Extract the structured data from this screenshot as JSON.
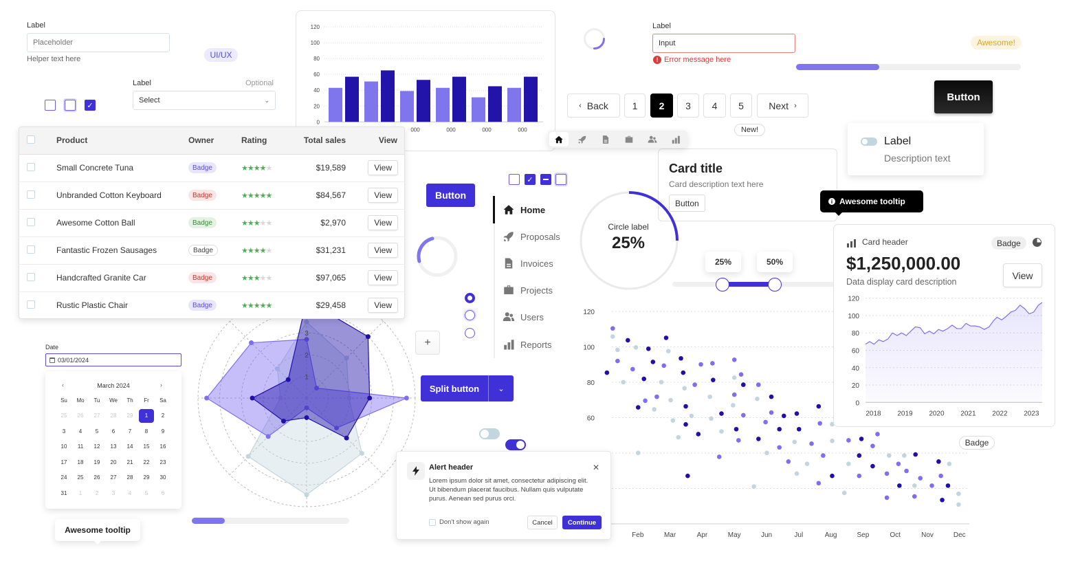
{
  "text_input": {
    "label": "Label",
    "placeholder": "Placeholder",
    "helper": "Helper text here"
  },
  "tag_badge": "UI/UX",
  "select_field": {
    "label": "Label",
    "optional": "Optional",
    "value": "Select"
  },
  "checkboxes_left": [
    {
      "checked": false
    },
    {
      "checked": false,
      "focused": true
    },
    {
      "checked": true
    }
  ],
  "error_input": {
    "label": "Label",
    "value": "Input",
    "error": "Error message here"
  },
  "awesome_badge": "Awesome!",
  "top_progress_percent": 37,
  "pagination": {
    "back": "Back",
    "pages": [
      "1",
      "2",
      "3",
      "4",
      "5"
    ],
    "active": "2",
    "next": "Next"
  },
  "new_badge": "New!",
  "dark_button": "Button",
  "toggle_card": {
    "label": "Label",
    "description": "Description text",
    "on": false
  },
  "icon_toolbar": [
    "home",
    "rocket",
    "document",
    "briefcase",
    "users",
    "bar-chart"
  ],
  "content_card": {
    "title": "Card title",
    "description": "Card description text here",
    "button": "Button"
  },
  "dark_tooltip": "Awesome tooltip",
  "circle_progress": {
    "label": "Circle label",
    "value": "25%",
    "percent": 25
  },
  "range_slider": {
    "low": "25%",
    "high": "50%",
    "low_value": 25,
    "high_value": 50
  },
  "primary_button": "Button",
  "ring_spinner_percent": 25,
  "checkbox_row": [
    "unchecked",
    "checked",
    "indeterminate",
    "unchecked"
  ],
  "radios": [
    {
      "selected": true
    },
    {
      "selected": false
    },
    {
      "selected": false
    }
  ],
  "add_button": "+",
  "side_nav": [
    {
      "label": "Home",
      "icon": "home",
      "active": true
    },
    {
      "label": "Proposals",
      "icon": "rocket"
    },
    {
      "label": "Invoices",
      "icon": "document"
    },
    {
      "label": "Projects",
      "icon": "briefcase"
    },
    {
      "label": "Users",
      "icon": "users"
    },
    {
      "label": "Reports",
      "icon": "bar-chart"
    }
  ],
  "split_button": "Split button",
  "toggles": [
    {
      "on": false
    },
    {
      "on": true
    }
  ],
  "alert": {
    "header": "Alert header",
    "body": "Lorem ipsum dolor sit amet, consectetur adipiscing elit. Ut bibendum placerat faucibus. Nullam quis vulputate purus. Aenean sed purus orci.",
    "checkbox": "Don't show again",
    "cancel": "Cancel",
    "continue": "Continue"
  },
  "bottom_progress_percent": 21,
  "white_tooltip": "Awesome tooltip",
  "date_picker": {
    "label": "Date",
    "value": "03/01/2024",
    "month": "March 2024",
    "weekdays": [
      "Su",
      "Mo",
      "Tu",
      "We",
      "Th",
      "Fr",
      "Sa"
    ],
    "weeks": [
      [
        "25",
        "26",
        "27",
        "28",
        "29",
        "1",
        "2"
      ],
      [
        "3",
        "4",
        "5",
        "6",
        "7",
        "8",
        "9"
      ],
      [
        "10",
        "11",
        "12",
        "13",
        "14",
        "15",
        "16"
      ],
      [
        "17",
        "18",
        "19",
        "20",
        "21",
        "22",
        "23"
      ],
      [
        "24",
        "25",
        "26",
        "27",
        "28",
        "29",
        "30"
      ],
      [
        "31",
        "1",
        "2",
        "3",
        "4",
        "5",
        "6"
      ]
    ],
    "selected": "1"
  },
  "table": {
    "columns": [
      "Product",
      "Owner",
      "Rating",
      "Total sales",
      "View"
    ],
    "rows": [
      {
        "product": "Small Concrete Tuna",
        "badge": "Badge",
        "badge_style": "purple",
        "rating": 4,
        "sales": "$19,589",
        "action": "View"
      },
      {
        "product": "Unbranded Cotton Keyboard",
        "badge": "Badge",
        "badge_style": "red",
        "rating": 5,
        "sales": "$84,567",
        "action": "View"
      },
      {
        "product": "Awesome Cotton Ball",
        "badge": "Badge",
        "badge_style": "green",
        "rating": 3,
        "sales": "$2,970",
        "action": "View"
      },
      {
        "product": "Fantastic Frozen Sausages",
        "badge": "Badge",
        "badge_style": "outline",
        "rating": 4,
        "sales": "$31,231",
        "action": "View"
      },
      {
        "product": "Handcrafted Granite Car",
        "badge": "Badge",
        "badge_style": "red",
        "rating": 3,
        "sales": "$97,065",
        "action": "View"
      },
      {
        "product": "Rustic Plastic Chair",
        "badge": "Badge",
        "badge_style": "purple",
        "rating": 5,
        "sales": "$29,458",
        "action": "View"
      }
    ]
  },
  "data_card": {
    "header": "Card header",
    "badge": "Badge",
    "value": "$1,250,000.00",
    "description": "Data display card description",
    "button": "View"
  },
  "floating_badge": "Badge",
  "colors": {
    "primary": "#4030d8",
    "light_purple": "#7f6ff0",
    "dark_navy": "#2010a8",
    "grey_blue": "#c3d6df",
    "error": "#d93a3a"
  },
  "chart_data": [
    {
      "type": "bar",
      "categories": [
        "000",
        "000",
        "000",
        "000",
        "000",
        "000"
      ],
      "series": [
        {
          "values": [
            43,
            51,
            39,
            43,
            31,
            43
          ],
          "color": "#7f76ee"
        },
        {
          "values": [
            57,
            65,
            53,
            57,
            45,
            57
          ],
          "color": "#2214a8"
        }
      ],
      "yticks": [
        0,
        20,
        40,
        60,
        80,
        100,
        120
      ],
      "ylim": [
        0,
        120
      ],
      "grid": true
    },
    {
      "type": "radar",
      "axes": 8,
      "ring_labels": [
        "1",
        "2",
        "3"
      ],
      "rmax": 5,
      "series": [
        {
          "color": "#c3d6df",
          "values": [
            3.5,
            2.6,
            1.95,
            3.6,
            4.45,
            3.8,
            1.2,
            1.9
          ]
        },
        {
          "color": "#7f6ff0",
          "values": [
            2.7,
            0.65,
            4.6,
            1.95,
            0.45,
            2.5,
            4.6,
            3.6
          ]
        },
        {
          "color": "#2010a8",
          "values": [
            4.5,
            4.0,
            2.9,
            2.6,
            0.9,
            1.5,
            2.5,
            1.2
          ]
        }
      ]
    },
    {
      "type": "scatter",
      "xticks": [
        "Feb",
        "Mar",
        "Apr",
        "May",
        "Jun",
        "Jul",
        "Aug",
        "Sep",
        "Oct",
        "Nov",
        "Dec"
      ],
      "yticks": [
        60,
        80,
        100,
        120
      ],
      "ylim": [
        0,
        120
      ],
      "grid": true,
      "series": [
        {
          "color": "#2010a8",
          "points": [
            [
              1.04,
              85.4
            ],
            [
              1.69,
              103.7
            ],
            [
              2.33,
              98.9
            ],
            [
              2.19,
              81.9
            ],
            [
              2.01,
              65.8
            ],
            [
              2.47,
              91.5
            ],
            [
              2.88,
              105.1
            ],
            [
              3.34,
              93.5
            ],
            [
              3.41,
              85.4
            ],
            [
              3.49,
              66.4
            ],
            [
              3.49,
              56.2
            ],
            [
              3.55,
              27.1
            ],
            [
              3.88,
              50.7
            ],
            [
              4.34,
              81.3
            ],
            [
              4.6,
              62.3
            ],
            [
              5.06,
              53.5
            ],
            [
              5.28,
              78.6
            ],
            [
              5.75,
              48.0
            ],
            [
              6.15,
              71.8
            ],
            [
              6.4,
              53.5
            ],
            [
              6.54,
              61.0
            ],
            [
              6.94,
              62.3
            ],
            [
              7.01,
              53.5
            ],
            [
              7.62,
              66.4
            ],
            [
              8.04,
              27.1
            ],
            [
              8.88,
              38.6
            ],
            [
              8.95,
              48.0
            ],
            [
              9.3,
              32.6
            ],
            [
              10.13,
              21.6
            ],
            [
              10.63,
              39.2
            ],
            [
              11.35,
              35.2
            ],
            [
              11.46,
              13.5
            ],
            [
              11.64,
              21.6
            ]
          ]
        },
        {
          "color": "#7f6ff0",
          "points": [
            [
              1.22,
              110.4
            ],
            [
              1.37,
              92.0
            ],
            [
              1.84,
              87.4
            ],
            [
              2.23,
              69.6
            ],
            [
              2.59,
              71.8
            ],
            [
              2.81,
              89.4
            ],
            [
              3.77,
              78.6
            ],
            [
              3.96,
              90.1
            ],
            [
              4.32,
              90.7
            ],
            [
              4.53,
              37.9
            ],
            [
              5.0,
              92.7
            ],
            [
              5.0,
              73.0
            ],
            [
              5.21,
              84.4
            ],
            [
              5.28,
              61.4
            ],
            [
              5.13,
              47.2
            ],
            [
              5.75,
              78.6
            ],
            [
              5.97,
              57.5
            ],
            [
              6.15,
              62.9
            ],
            [
              6.4,
              43.2
            ],
            [
              6.68,
              35.2
            ],
            [
              7.4,
              45.3
            ],
            [
              7.66,
              56.8
            ],
            [
              7.76,
              38.6
            ],
            [
              7.62,
              23.0
            ],
            [
              8.55,
              47.2
            ],
            [
              8.88,
              27.1
            ],
            [
              9.3,
              44.0
            ],
            [
              9.45,
              50.7
            ],
            [
              9.74,
              28.4
            ],
            [
              9.74,
              14.8
            ],
            [
              10.1,
              33.9
            ],
            [
              10.35,
              29.9
            ],
            [
              10.78,
              25.8
            ],
            [
              10.6,
              15.5
            ],
            [
              11.14,
              21.6
            ],
            [
              11.42,
              27.1
            ]
          ]
        },
        {
          "color": "#c3d6df",
          "points": [
            [
              1.22,
              105.8
            ],
            [
              1.37,
              98.3
            ],
            [
              1.55,
              80.1
            ],
            [
              1.94,
              99.7
            ],
            [
              2.01,
              40.1
            ],
            [
              2.51,
              64.7
            ],
            [
              2.73,
              80.1
            ],
            [
              2.95,
              97.6
            ],
            [
              3.02,
              69.9
            ],
            [
              3.09,
              58.4
            ],
            [
              3.26,
              48.9
            ],
            [
              3.45,
              76.6
            ],
            [
              3.67,
              61.0
            ],
            [
              4.24,
              71.8
            ],
            [
              4.28,
              59.5
            ],
            [
              4.6,
              52.2
            ],
            [
              4.96,
              67.0
            ],
            [
              5.0,
              82.6
            ],
            [
              5.61,
              21.1
            ],
            [
              5.71,
              70.6
            ],
            [
              6.01,
              40.1
            ],
            [
              6.87,
              46.3
            ],
            [
              6.94,
              28.4
            ],
            [
              7.26,
              33.9
            ],
            [
              8.04,
              46.9
            ],
            [
              8.04,
              56.3
            ],
            [
              8.42,
              17.5
            ],
            [
              8.55,
              33.9
            ],
            [
              9.81,
              38.6
            ],
            [
              10.28,
              38.6
            ],
            [
              10.6,
              21.6
            ],
            [
              11.68,
              33.9
            ],
            [
              11.97,
              17.0
            ],
            [
              11.97,
              10.9
            ]
          ]
        }
      ]
    },
    {
      "type": "area",
      "xticks": [
        "2018",
        "2019",
        "2020",
        "2021",
        "2022",
        "2023"
      ],
      "yticks": [
        0,
        20,
        40,
        60,
        80,
        100,
        120
      ],
      "ylim": [
        0,
        120
      ],
      "grid": true,
      "color": "#7f6ff0",
      "x": [
        2017.75,
        2017.88,
        2018.02,
        2018.17,
        2018.31,
        2018.46,
        2018.6,
        2018.75,
        2018.89,
        2019.04,
        2019.18,
        2019.33,
        2019.48,
        2019.62,
        2019.77,
        2019.91,
        2020.06,
        2020.2,
        2020.35,
        2020.49,
        2020.64,
        2020.78,
        2020.93,
        2021.07,
        2021.22,
        2021.36,
        2021.51,
        2021.66,
        2021.8,
        2021.91,
        2022.06,
        2022.2,
        2022.35,
        2022.49,
        2022.64,
        2022.78,
        2022.93,
        2023.07,
        2023.22,
        2023.34
      ],
      "y": [
        67,
        70,
        67,
        72,
        70,
        73,
        80,
        77,
        80,
        77,
        82,
        87,
        86,
        79,
        82,
        79,
        84,
        82,
        85,
        89,
        85,
        85,
        91,
        88,
        88,
        87,
        84,
        87,
        94,
        98,
        95,
        99,
        104,
        106,
        112,
        108,
        102,
        104,
        112,
        115
      ]
    }
  ]
}
